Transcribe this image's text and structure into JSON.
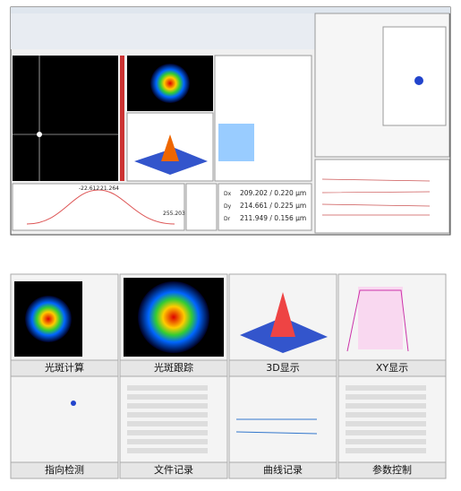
{
  "window": {
    "profile_markers": [
      "-22.612",
      "21.264"
    ],
    "profile_peak": "255.203",
    "readouts": [
      {
        "label": "Dx",
        "value": "209.202 / 0.220 µm"
      },
      {
        "label": "Dy",
        "value": "214.661 / 0.225 µm"
      },
      {
        "label": "Dr",
        "value": "211.949 / 0.156 µm"
      }
    ]
  },
  "thumbnails": [
    {
      "label": "光斑计算"
    },
    {
      "label": "光斑跟踪"
    },
    {
      "label": "3D显示"
    },
    {
      "label": "XY显示"
    },
    {
      "label": "指向检测"
    },
    {
      "label": "文件记录"
    },
    {
      "label": "曲线记录"
    },
    {
      "label": "参数控制"
    }
  ]
}
